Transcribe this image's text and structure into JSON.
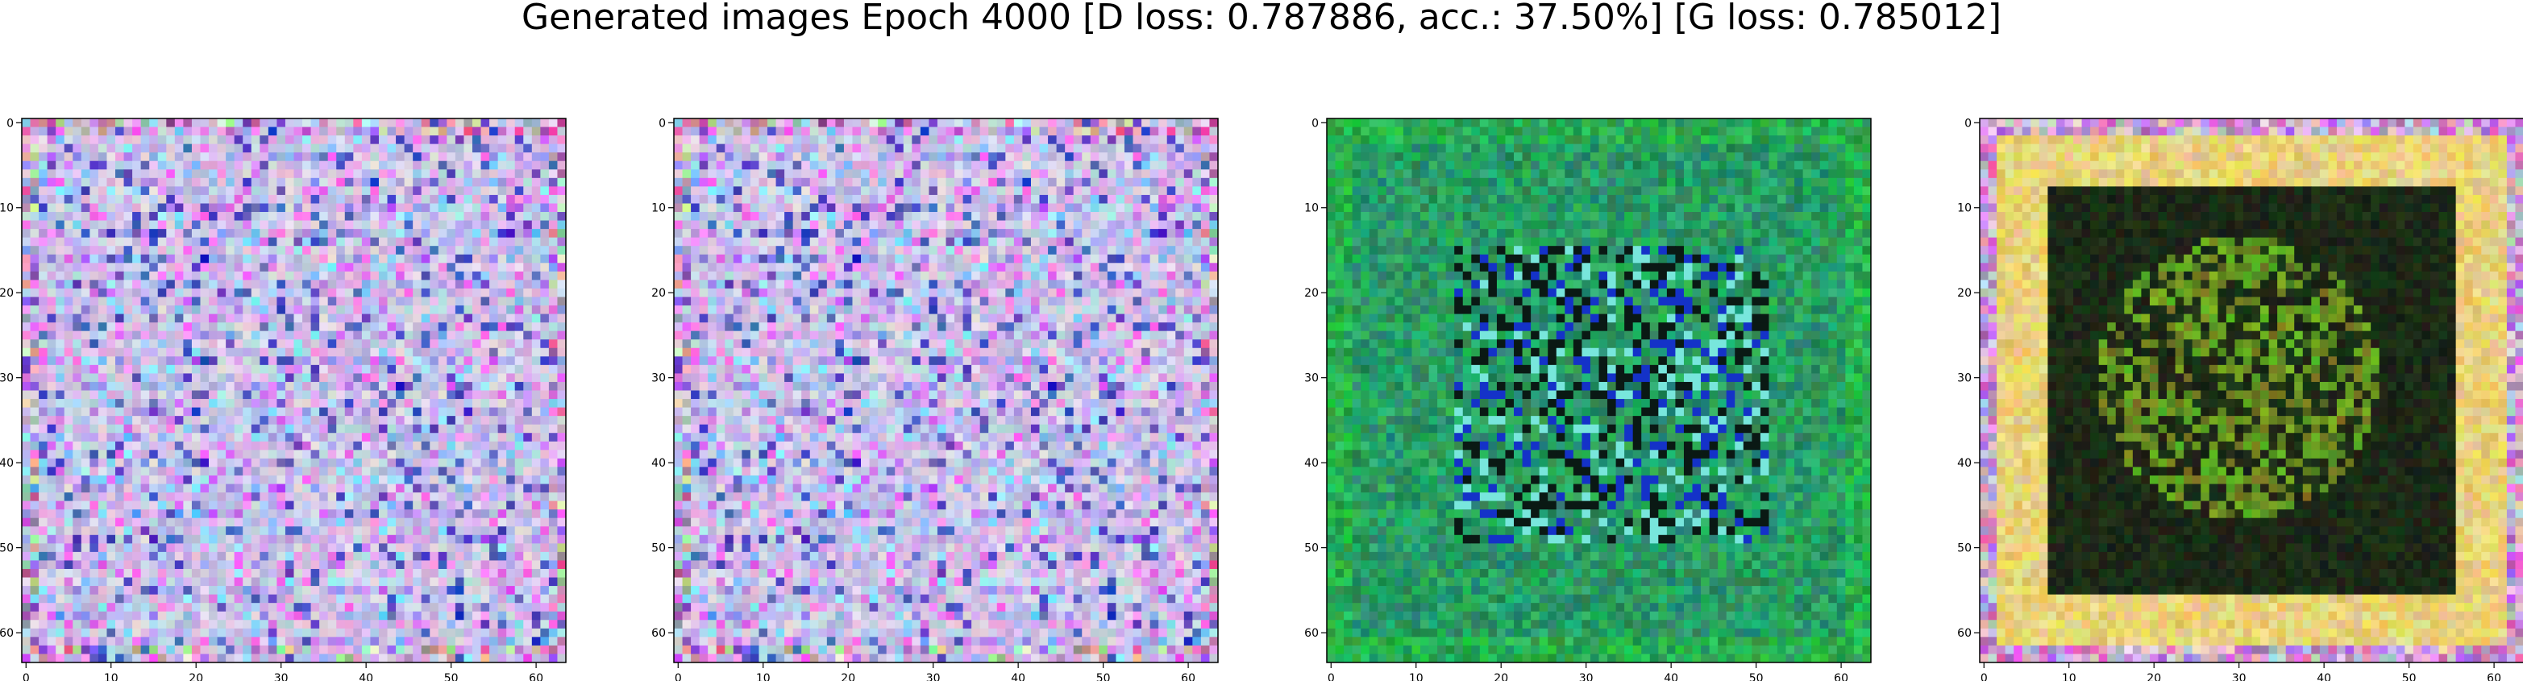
{
  "figure": {
    "title": "Generated images Epoch 4000 [D loss: 0.787886, acc.: 37.50%] [G loss: 0.785012]"
  },
  "chart_data": {
    "type": "heatmap",
    "title": "Generated images Epoch 4000 [D loss: 0.787886, acc.: 37.50%] [G loss: 0.785012]",
    "epoch": 4000,
    "d_loss": 0.787886,
    "accuracy_percent": 37.5,
    "g_loss": 0.785012,
    "image_grid_size": 64,
    "xlim": [
      -0.5,
      63.5
    ],
    "ylim": [
      63.5,
      -0.5
    ],
    "xticks": [
      0,
      10,
      20,
      30,
      40,
      50,
      60
    ],
    "yticks": [
      0,
      10,
      20,
      30,
      40,
      50,
      60
    ],
    "panels": [
      {
        "name": "generated-image-1",
        "style": "pastel-noise",
        "dominant_colors": [
          "#c8c0e8",
          "#e8b0e0",
          "#a0d8e8",
          "#1a1a60"
        ]
      },
      {
        "name": "generated-image-2",
        "style": "pastel-noise",
        "dominant_colors": [
          "#c8c0e8",
          "#e8b0e0",
          "#a0d8e8",
          "#1a1a60"
        ]
      },
      {
        "name": "generated-image-3",
        "style": "green-teal",
        "dominant_colors": [
          "#1a8a4a",
          "#20b0a0",
          "#1030c0",
          "#051010"
        ]
      },
      {
        "name": "generated-image-4",
        "style": "dark-center-yellow-border",
        "dominant_colors": [
          "#e8d060",
          "#101a10",
          "#406a20",
          "#d080e0"
        ]
      }
    ]
  }
}
